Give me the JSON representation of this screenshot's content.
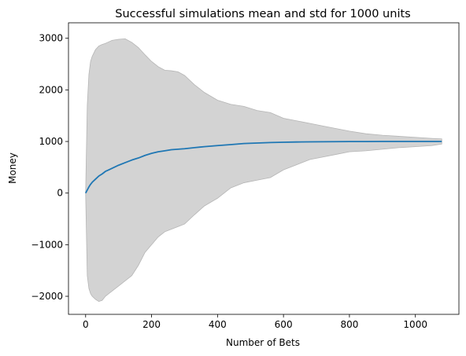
{
  "chart_data": {
    "type": "area",
    "title": "Successful simulations mean and std for 1000 units",
    "xlabel": "Number of Bets",
    "ylabel": "Money",
    "xlim": [
      -52,
      1132
    ],
    "ylim": [
      -2350,
      3300
    ],
    "xticks": [
      0,
      200,
      400,
      600,
      800,
      1000
    ],
    "xtick_labels": [
      "0",
      "200",
      "400",
      "600",
      "800",
      "1000"
    ],
    "yticks": [
      -2000,
      -1000,
      0,
      1000,
      2000,
      3000
    ],
    "ytick_labels": [
      "−2000",
      "−1000",
      "0",
      "1000",
      "2000",
      "3000"
    ],
    "grid": false,
    "band_color": "#d3d3d3",
    "band_edge_color": "#b5b5b5",
    "line_color": "#1f77b4",
    "series": [
      {
        "x": [
          0,
          5,
          10,
          15,
          20,
          30,
          40,
          50,
          60,
          70,
          80,
          100,
          120,
          140,
          160,
          180,
          200,
          220,
          240,
          260,
          280,
          300,
          330,
          360,
          400,
          440,
          480,
          520,
          560,
          600,
          640,
          680,
          720,
          760,
          800,
          850,
          900,
          950,
          1000,
          1050,
          1080
        ],
        "mean": [
          0,
          60,
          120,
          170,
          210,
          270,
          330,
          370,
          420,
          450,
          480,
          540,
          590,
          640,
          680,
          730,
          770,
          800,
          820,
          840,
          850,
          860,
          880,
          900,
          920,
          940,
          960,
          970,
          980,
          985,
          990,
          993,
          995,
          997,
          998,
          999,
          1000,
          1000,
          1000,
          1000,
          1000
        ],
        "upper": [
          0,
          1700,
          2300,
          2550,
          2650,
          2780,
          2850,
          2880,
          2900,
          2930,
          2960,
          2980,
          2990,
          2920,
          2820,
          2680,
          2550,
          2450,
          2380,
          2370,
          2350,
          2280,
          2100,
          1950,
          1800,
          1720,
          1680,
          1600,
          1560,
          1450,
          1400,
          1350,
          1300,
          1250,
          1200,
          1150,
          1120,
          1100,
          1080,
          1060,
          1050
        ],
        "lower": [
          0,
          -1600,
          -1850,
          -1950,
          -2000,
          -2060,
          -2100,
          -2080,
          -2000,
          -1950,
          -1900,
          -1800,
          -1700,
          -1600,
          -1400,
          -1150,
          -1000,
          -850,
          -750,
          -700,
          -650,
          -600,
          -420,
          -250,
          -100,
          100,
          200,
          250,
          300,
          450,
          550,
          650,
          700,
          750,
          800,
          820,
          850,
          880,
          900,
          920,
          950
        ]
      }
    ]
  }
}
